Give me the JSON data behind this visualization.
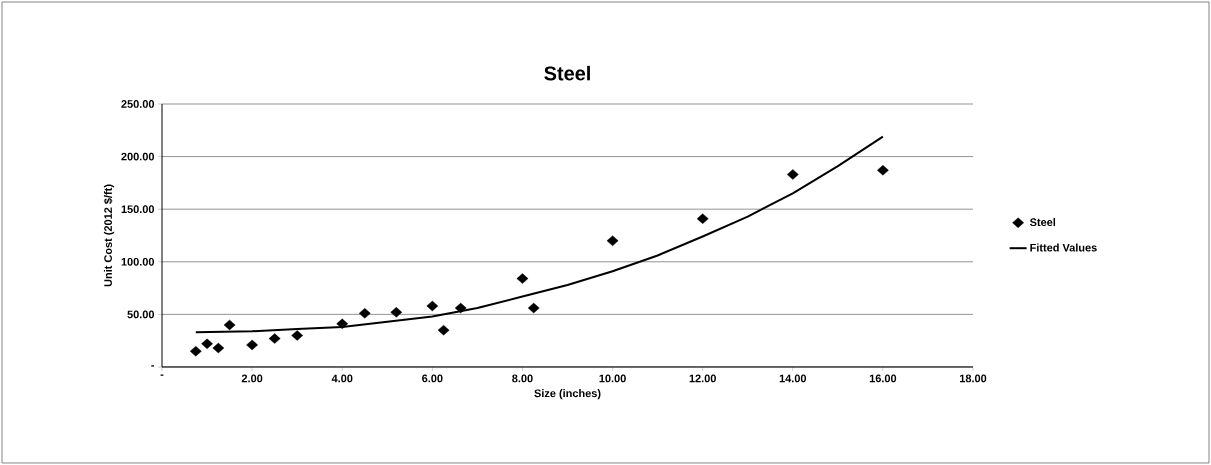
{
  "chart_data": {
    "type": "scatter",
    "title": "Steel",
    "xlabel": "Size (inches)",
    "ylabel": "Unit Cost (2012 $/ft)",
    "xlim": [
      0,
      18
    ],
    "ylim": [
      0,
      250
    ],
    "xticks": [
      {
        "value": 0,
        "label": "-"
      },
      {
        "value": 2,
        "label": "2.00"
      },
      {
        "value": 4,
        "label": "4.00"
      },
      {
        "value": 6,
        "label": "6.00"
      },
      {
        "value": 8,
        "label": "8.00"
      },
      {
        "value": 10,
        "label": "10.00"
      },
      {
        "value": 12,
        "label": "12.00"
      },
      {
        "value": 14,
        "label": "14.00"
      },
      {
        "value": 16,
        "label": "16.00"
      },
      {
        "value": 18,
        "label": "18.00"
      }
    ],
    "yticks": [
      {
        "value": 0,
        "label": "-"
      },
      {
        "value": 50,
        "label": "50.00"
      },
      {
        "value": 100,
        "label": "100.00"
      },
      {
        "value": 150,
        "label": "150.00"
      },
      {
        "value": 200,
        "label": "200.00"
      },
      {
        "value": 250,
        "label": "250.00"
      }
    ],
    "grid": "y",
    "legend": "right",
    "series": [
      {
        "name": "Steel",
        "marker": "diamond",
        "color": "#000000",
        "x": [
          0.75,
          1,
          1.25,
          1.5,
          2,
          2.5,
          3,
          4,
          4.5,
          5.2,
          6,
          6.25,
          6.63,
          8,
          8.25,
          10,
          12,
          14,
          16
        ],
        "values": [
          15,
          22,
          18,
          40,
          21,
          27,
          30,
          41,
          51,
          52,
          58,
          35,
          56,
          84,
          56,
          120,
          141,
          183,
          187
        ]
      },
      {
        "name": "Fitted Values",
        "type": "line",
        "marker": "none",
        "line_style": "solid",
        "color": "#000000",
        "x": [
          0.75,
          2,
          3,
          4,
          5,
          6,
          7,
          8,
          9,
          10,
          11,
          12,
          13,
          14,
          15,
          16
        ],
        "values": [
          33,
          34,
          36,
          38,
          43,
          48,
          56,
          67,
          78,
          91,
          106,
          124,
          143,
          165,
          191,
          219
        ]
      }
    ]
  }
}
